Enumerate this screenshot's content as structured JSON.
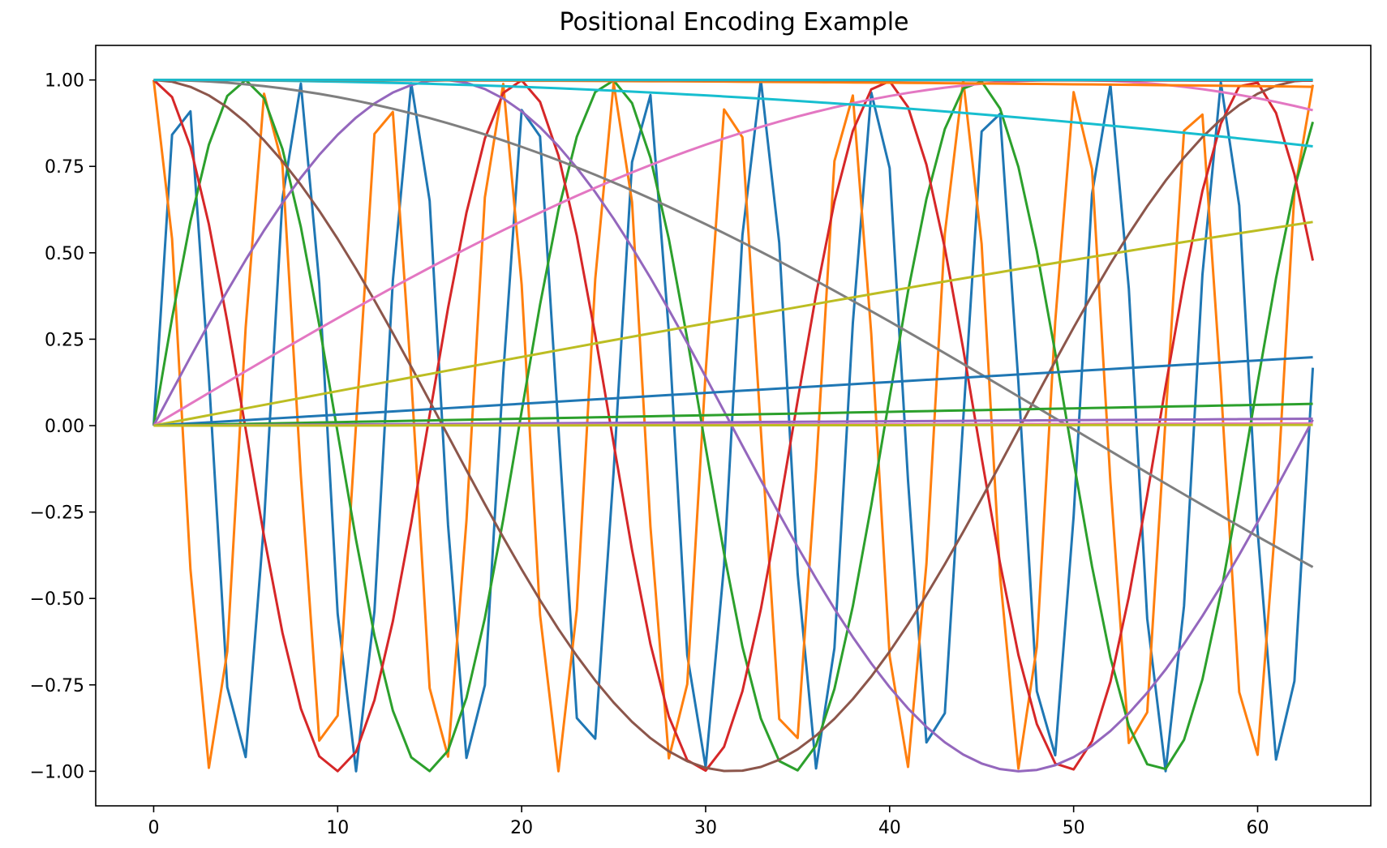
{
  "chart_data": {
    "type": "line",
    "title": "Positional Encoding Example",
    "xlabel": "",
    "ylabel": "",
    "xlim": [
      -3.15,
      66.15
    ],
    "ylim": [
      -1.1,
      1.1
    ],
    "xticks": [
      0,
      10,
      20,
      30,
      40,
      50,
      60
    ],
    "xtick_labels": [
      "0",
      "10",
      "20",
      "30",
      "40",
      "50",
      "60"
    ],
    "yticks": [
      -1.0,
      -0.75,
      -0.5,
      -0.25,
      0.0,
      0.25,
      0.5,
      0.75,
      1.0
    ],
    "ytick_labels": [
      "−1.00",
      "−0.75",
      "−0.50",
      "−0.25",
      "0.00",
      "0.25",
      "0.50",
      "0.75",
      "1.00"
    ],
    "grid": false,
    "legend": "none",
    "x": [
      0,
      1,
      2,
      3,
      4,
      5,
      6,
      7,
      8,
      9,
      10,
      11,
      12,
      13,
      14,
      15,
      16,
      17,
      18,
      19,
      20,
      21,
      22,
      23,
      24,
      25,
      26,
      27,
      28,
      29,
      30,
      31,
      32,
      33,
      34,
      35,
      36,
      37,
      38,
      39,
      40,
      41,
      42,
      43,
      44,
      45,
      46,
      47,
      48,
      49,
      50,
      51,
      52,
      53,
      54,
      55,
      56,
      57,
      58,
      59,
      60,
      61,
      62,
      63
    ],
    "series": [
      {
        "color": "#1f77b4",
        "function": "sin",
        "frequency": 1.0
      },
      {
        "color": "#ff7f0e",
        "function": "cos",
        "frequency": 1.0
      },
      {
        "color": "#2ca02c",
        "function": "sin",
        "frequency": 0.31623
      },
      {
        "color": "#d62728",
        "function": "cos",
        "frequency": 0.31623
      },
      {
        "color": "#9467bd",
        "function": "sin",
        "frequency": 0.1
      },
      {
        "color": "#8c564b",
        "function": "cos",
        "frequency": 0.1
      },
      {
        "color": "#e377c2",
        "function": "sin",
        "frequency": 0.031623
      },
      {
        "color": "#7f7f7f",
        "function": "cos",
        "frequency": 0.031623
      },
      {
        "color": "#bcbd22",
        "function": "sin",
        "frequency": 0.01
      },
      {
        "color": "#17becf",
        "function": "cos",
        "frequency": 0.01
      },
      {
        "color": "#1f77b4",
        "function": "sin",
        "frequency": 0.0031623
      },
      {
        "color": "#ff7f0e",
        "function": "cos",
        "frequency": 0.0031623
      },
      {
        "color": "#2ca02c",
        "function": "sin",
        "frequency": 0.001
      },
      {
        "color": "#d62728",
        "function": "cos",
        "frequency": 0.001
      },
      {
        "color": "#9467bd",
        "function": "sin",
        "frequency": 0.00031623
      },
      {
        "color": "#8c564b",
        "function": "cos",
        "frequency": 0.00031623
      },
      {
        "color": "#e377c2",
        "function": "sin",
        "frequency": 0.0001
      },
      {
        "color": "#7f7f7f",
        "function": "cos",
        "frequency": 0.0001
      },
      {
        "color": "#bcbd22",
        "function": "sin",
        "frequency": 3.1623e-05
      },
      {
        "color": "#17becf",
        "function": "cos",
        "frequency": 3.1623e-05
      }
    ]
  }
}
